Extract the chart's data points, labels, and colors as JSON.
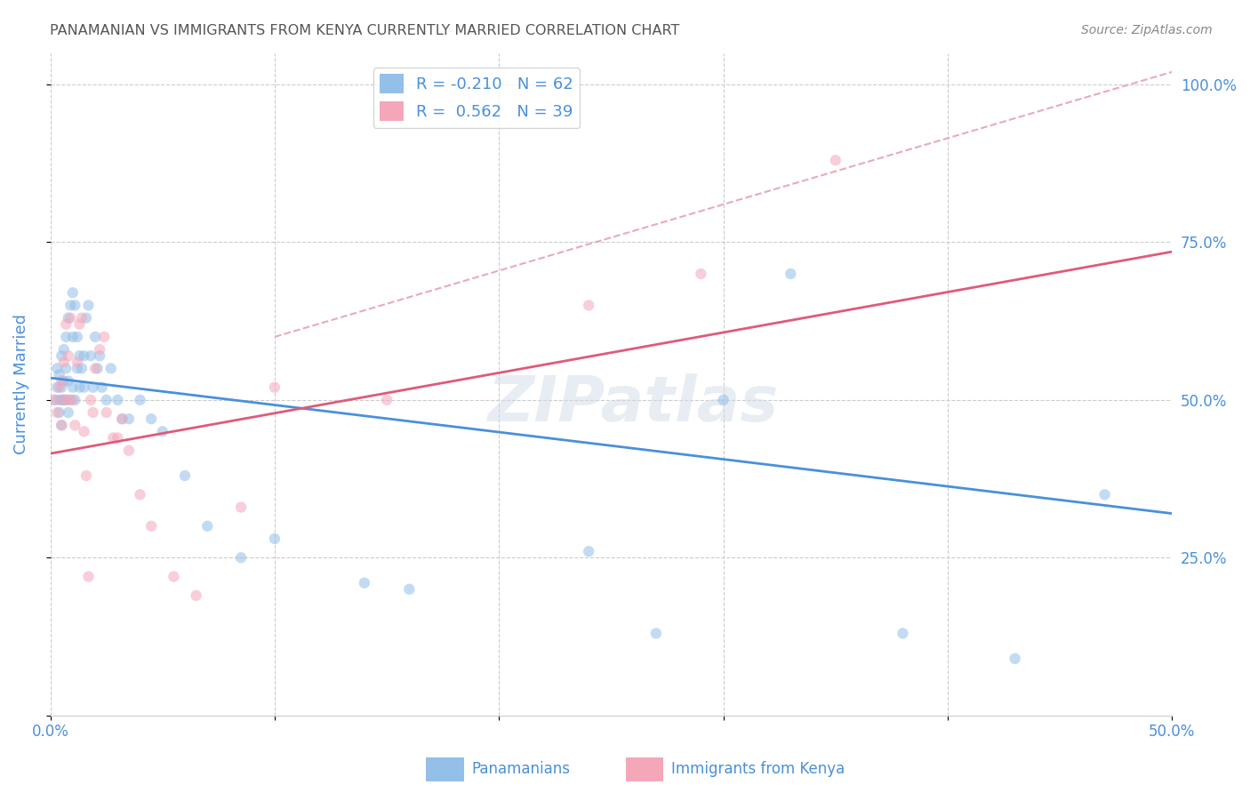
{
  "title": "PANAMANIAN VS IMMIGRANTS FROM KENYA CURRENTLY MARRIED CORRELATION CHART",
  "source": "Source: ZipAtlas.com",
  "ylabel": "Currently Married",
  "xlim": [
    0.0,
    0.5
  ],
  "ylim": [
    0.0,
    1.05
  ],
  "x_ticks": [
    0.0,
    0.1,
    0.2,
    0.3,
    0.4,
    0.5
  ],
  "x_tick_labels": [
    "0.0%",
    "",
    "",
    "",
    "",
    "50.0%"
  ],
  "y_ticks": [
    0.0,
    0.25,
    0.5,
    0.75,
    1.0
  ],
  "y_tick_labels_right": [
    "",
    "25.0%",
    "50.0%",
    "75.0%",
    "100.0%"
  ],
  "blue_scatter_x": [
    0.002,
    0.003,
    0.003,
    0.004,
    0.004,
    0.004,
    0.005,
    0.005,
    0.005,
    0.005,
    0.006,
    0.006,
    0.006,
    0.007,
    0.007,
    0.007,
    0.008,
    0.008,
    0.008,
    0.009,
    0.009,
    0.01,
    0.01,
    0.01,
    0.011,
    0.011,
    0.012,
    0.012,
    0.013,
    0.013,
    0.014,
    0.015,
    0.015,
    0.016,
    0.017,
    0.018,
    0.019,
    0.02,
    0.021,
    0.022,
    0.023,
    0.025,
    0.027,
    0.03,
    0.032,
    0.035,
    0.04,
    0.045,
    0.05,
    0.06,
    0.07,
    0.085,
    0.1,
    0.14,
    0.16,
    0.24,
    0.27,
    0.3,
    0.33,
    0.38,
    0.43,
    0.47
  ],
  "blue_scatter_y": [
    0.5,
    0.52,
    0.55,
    0.48,
    0.5,
    0.54,
    0.46,
    0.5,
    0.52,
    0.57,
    0.5,
    0.53,
    0.58,
    0.5,
    0.55,
    0.6,
    0.48,
    0.53,
    0.63,
    0.5,
    0.65,
    0.52,
    0.6,
    0.67,
    0.5,
    0.65,
    0.55,
    0.6,
    0.52,
    0.57,
    0.55,
    0.52,
    0.57,
    0.63,
    0.65,
    0.57,
    0.52,
    0.6,
    0.55,
    0.57,
    0.52,
    0.5,
    0.55,
    0.5,
    0.47,
    0.47,
    0.5,
    0.47,
    0.45,
    0.38,
    0.3,
    0.25,
    0.28,
    0.21,
    0.2,
    0.26,
    0.13,
    0.5,
    0.7,
    0.13,
    0.09,
    0.35
  ],
  "pink_scatter_x": [
    0.002,
    0.003,
    0.004,
    0.005,
    0.005,
    0.006,
    0.006,
    0.007,
    0.008,
    0.008,
    0.009,
    0.01,
    0.011,
    0.012,
    0.013,
    0.014,
    0.015,
    0.016,
    0.017,
    0.018,
    0.019,
    0.02,
    0.022,
    0.024,
    0.025,
    0.028,
    0.03,
    0.032,
    0.035,
    0.04,
    0.045,
    0.055,
    0.065,
    0.085,
    0.1,
    0.15,
    0.24,
    0.29,
    0.35
  ],
  "pink_scatter_y": [
    0.5,
    0.48,
    0.52,
    0.46,
    0.53,
    0.5,
    0.56,
    0.62,
    0.5,
    0.57,
    0.63,
    0.5,
    0.46,
    0.56,
    0.62,
    0.63,
    0.45,
    0.38,
    0.22,
    0.5,
    0.48,
    0.55,
    0.58,
    0.6,
    0.48,
    0.44,
    0.44,
    0.47,
    0.42,
    0.35,
    0.3,
    0.22,
    0.19,
    0.33,
    0.52,
    0.5,
    0.65,
    0.7,
    0.88
  ],
  "blue_line_x": [
    0.0,
    0.5
  ],
  "blue_line_y": [
    0.535,
    0.32
  ],
  "pink_line_x": [
    0.0,
    0.5
  ],
  "pink_line_y": [
    0.415,
    0.735
  ],
  "pink_dash_line_x": [
    0.1,
    0.5
  ],
  "pink_dash_line_y": [
    0.6,
    1.02
  ],
  "scatter_size": 80,
  "scatter_alpha": 0.55,
  "grid_color": "#cccccc",
  "background_color": "#ffffff",
  "blue_color": "#93bfe8",
  "pink_color": "#f4a7b9",
  "blue_line_color": "#4a90d9",
  "pink_line_color": "#e05a7a",
  "pink_dash_color": "#e8aabb",
  "title_color": "#555555",
  "source_color": "#888888",
  "axis_label_color": "#4a90d9",
  "tick_label_color": "#4a90d9",
  "watermark_text": "ZIPatlas",
  "legend_label_blue": "R = -0.210   N = 62",
  "legend_label_pink": "R =  0.562   N = 39",
  "bottom_label_blue": "Panamanians",
  "bottom_label_pink": "Immigrants from Kenya"
}
